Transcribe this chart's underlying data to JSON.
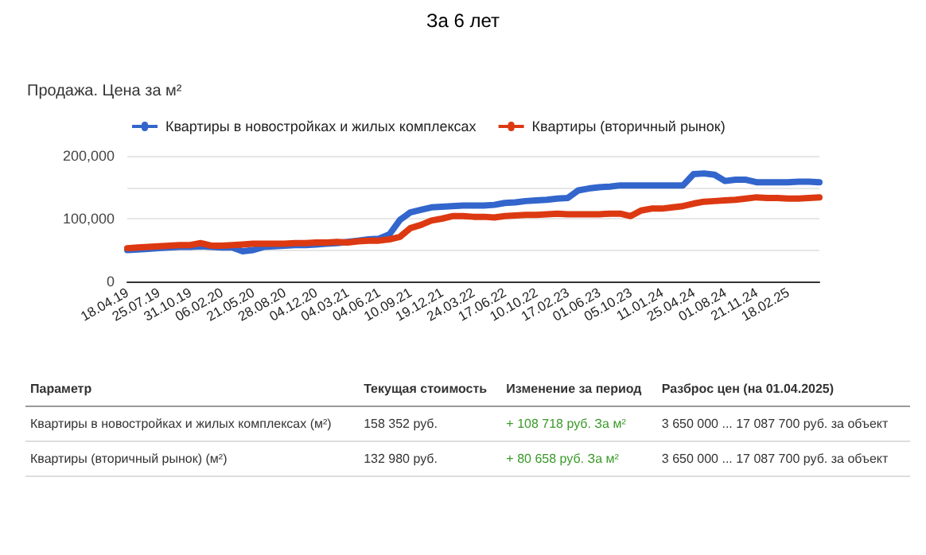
{
  "chart_data": {
    "type": "line",
    "title": "За 6 лет",
    "subtitle": "Продажа. Цена за м²",
    "categories": [
      "18.04.19",
      null,
      null,
      "25.07.19",
      null,
      null,
      "31.10.19",
      null,
      null,
      "06.02.20",
      null,
      null,
      "21.05.20",
      null,
      null,
      "28.08.20",
      null,
      null,
      "04.12.20",
      null,
      null,
      "04.03.21",
      null,
      null,
      "04.06.21",
      null,
      null,
      "10.09.21",
      null,
      null,
      "19.12.21",
      null,
      null,
      "24.03.22",
      null,
      null,
      "17.06.22",
      null,
      null,
      "10.10.22",
      null,
      null,
      "17.02.23",
      null,
      null,
      "01.06.23",
      null,
      null,
      "05.10.23",
      null,
      null,
      "11.01.24",
      null,
      null,
      "25.04.24",
      null,
      null,
      "01.08.24",
      null,
      null,
      "21.11.24",
      null,
      null,
      "18.02.25",
      null,
      null,
      null
    ],
    "series": [
      {
        "name": "Квартиры в новостройках и жилых комплексах",
        "color": "#3366cc",
        "values": [
          50000,
          51000,
          52000,
          53000,
          54000,
          55000,
          55000,
          56000,
          55000,
          54000,
          54000,
          48000,
          50000,
          55000,
          56000,
          57000,
          58000,
          58000,
          59000,
          60000,
          61000,
          63000,
          65000,
          67000,
          68000,
          75000,
          98000,
          110000,
          114000,
          118000,
          119000,
          120000,
          121000,
          121000,
          121000,
          122000,
          125000,
          126000,
          128000,
          129000,
          130000,
          132000,
          133000,
          145000,
          148000,
          150000,
          151000,
          153000,
          153000,
          153000,
          153000,
          153000,
          153000,
          153000,
          171000,
          172000,
          170000,
          160000,
          162000,
          162000,
          158000,
          158000,
          158000,
          158000,
          159000,
          159000,
          158000
        ]
      },
      {
        "name": "Квартиры (вторичный рынок)",
        "color": "#dc3912",
        "values": [
          53000,
          54000,
          55000,
          56000,
          57000,
          58000,
          58000,
          61000,
          57000,
          57000,
          58000,
          59000,
          60000,
          60000,
          60000,
          60000,
          61000,
          61000,
          62000,
          62000,
          63000,
          62000,
          64000,
          65000,
          65000,
          67000,
          71000,
          85000,
          90000,
          97000,
          100000,
          104000,
          104000,
          103000,
          103000,
          102000,
          104000,
          105000,
          106000,
          106000,
          107000,
          108000,
          107000,
          107000,
          107000,
          107000,
          108000,
          108000,
          104000,
          113000,
          116000,
          116000,
          118000,
          120000,
          124000,
          127000,
          128000,
          129000,
          130000,
          132000,
          134000,
          133000,
          133000,
          132000,
          132000,
          133000,
          134000
        ]
      }
    ],
    "ylim": [
      0,
      200000
    ],
    "yticks": [
      0,
      {
        "value": 50000,
        "label": null
      },
      {
        "value": 100000,
        "label": "100,000"
      },
      {
        "value": 150000,
        "label": null
      },
      {
        "value": 200000,
        "label": "200,000"
      }
    ],
    "grid": "y",
    "legend": "top",
    "line_style": "solid",
    "annotations": [
      "Параметр",
      "Текущая стоимость",
      "Изменение за период",
      "Разброс цен (на 01.04.2025)",
      "Квартиры в новостройках и жилых комплексах (м²)",
      "158 352 руб.",
      "+ 108 718 руб. За м²",
      "3 650 000 ... 17 087 700 руб. за объект",
      "Квартиры (вторичный рынок) (м²)",
      "132 980 руб.",
      "+ 80 658 руб. За м²",
      "3 650 000 ... 17 087 700 руб. за объект"
    ]
  }
}
